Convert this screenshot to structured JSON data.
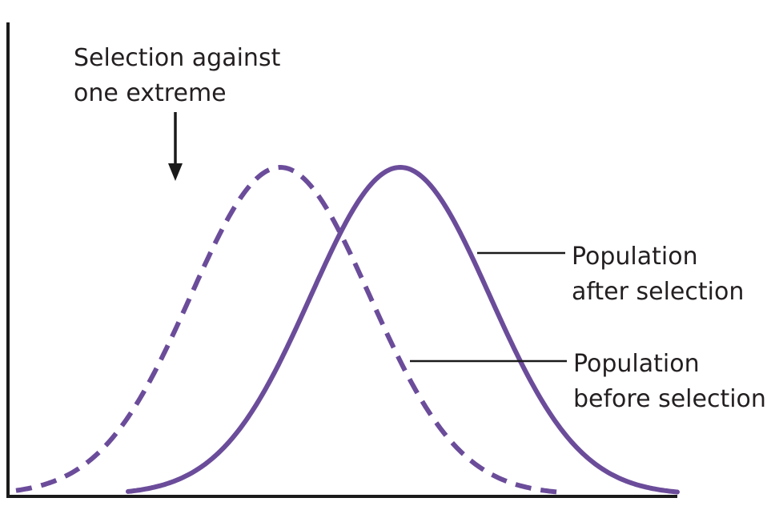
{
  "diagram": {
    "annotation": {
      "line1": "Selection against",
      "line2": "one extreme"
    },
    "after_label": {
      "line1": "Population",
      "line2": "after selection"
    },
    "before_label": {
      "line1": "Population",
      "line2": "before selection"
    },
    "colors": {
      "curve": "#6b4c9a",
      "axis": "#1a1a1a",
      "text": "#231f20"
    }
  }
}
